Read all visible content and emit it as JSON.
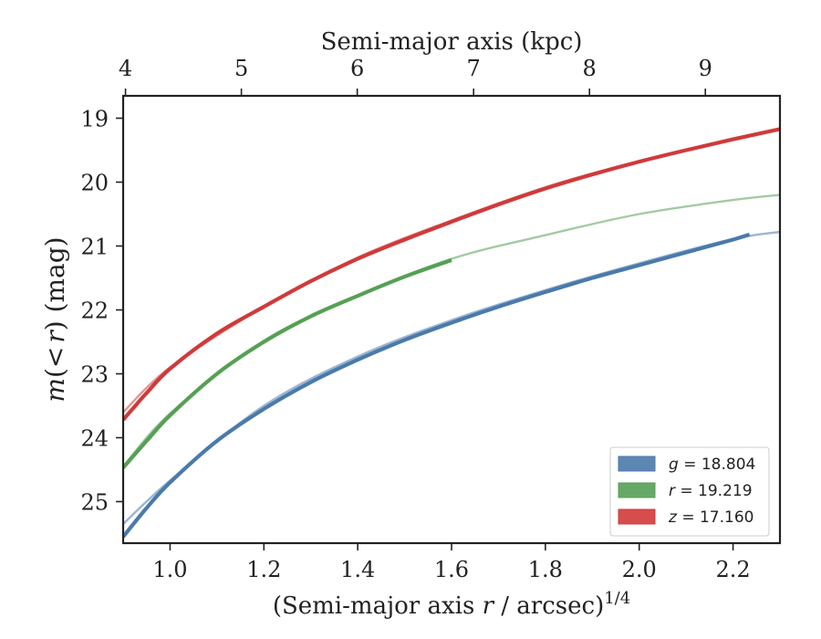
{
  "chart_data": {
    "type": "line",
    "xlabel": "(Semi-major axis r / arcsec)^{1/4}",
    "xlabel_parts": {
      "prefix": "(Semi-major axis ",
      "var": "r",
      "mid": " / arcsec)",
      "sup": "1/4"
    },
    "ylabel": "m(<r) (mag)",
    "ylabel_parts": {
      "m": "m",
      "open": "(",
      "lt": "<",
      "r": "r",
      "close": ")",
      "unit": " (mag)"
    },
    "top_xlabel": "Semi-major axis (kpc)",
    "xlim": [
      0.9,
      2.3
    ],
    "ylim": [
      25.65,
      18.65
    ],
    "y_inverted": true,
    "xticks": [
      "1.0",
      "1.2",
      "1.4",
      "1.6",
      "1.8",
      "2.0",
      "2.2"
    ],
    "xtick_values": [
      1.0,
      1.2,
      1.4,
      1.6,
      1.8,
      2.0,
      2.2
    ],
    "yticks": [
      "19",
      "20",
      "21",
      "22",
      "23",
      "24",
      "25"
    ],
    "ytick_values": [
      19,
      20,
      21,
      22,
      23,
      24,
      25
    ],
    "top_xticks": [
      "4",
      "5",
      "6",
      "7",
      "8",
      "9"
    ],
    "top_xtick_positions": [
      0.905,
      1.152,
      1.399,
      1.647,
      1.894,
      2.141
    ],
    "legend_position": "lower-right",
    "grid": false,
    "series": [
      {
        "name": "g = 18.804",
        "legend_var": "g",
        "legend_val": "18.804",
        "color": "#4a7aab",
        "data_x": [
          0.9,
          0.95,
          1.0,
          1.1,
          1.2,
          1.3,
          1.4,
          1.5,
          1.6,
          1.7,
          1.8,
          1.9,
          2.0,
          2.1,
          2.2,
          2.235
        ],
        "data_y": [
          25.55,
          25.1,
          24.7,
          24.05,
          23.55,
          23.13,
          22.78,
          22.47,
          22.2,
          21.95,
          21.72,
          21.5,
          21.3,
          21.1,
          20.9,
          20.82
        ],
        "model_x": [
          0.9,
          1.0,
          1.2,
          1.4,
          1.6,
          1.8,
          2.0,
          2.2,
          2.3
        ],
        "model_y": [
          25.35,
          24.67,
          23.5,
          22.73,
          22.16,
          21.69,
          21.27,
          20.89,
          20.78
        ]
      },
      {
        "name": "r = 19.219",
        "legend_var": "r",
        "legend_val": "19.219",
        "color": "#55a055",
        "data_x": [
          0.9,
          0.95,
          1.0,
          1.1,
          1.2,
          1.3,
          1.4,
          1.5,
          1.6
        ],
        "data_y": [
          24.47,
          24.05,
          23.65,
          23.0,
          22.5,
          22.1,
          21.78,
          21.48,
          21.22
        ],
        "model_x": [
          0.9,
          1.0,
          1.2,
          1.4,
          1.6,
          1.8,
          2.0,
          2.2,
          2.3
        ],
        "model_y": [
          24.45,
          23.62,
          22.48,
          21.78,
          21.2,
          20.83,
          20.5,
          20.28,
          20.2
        ]
      },
      {
        "name": "z = 17.160",
        "legend_var": "z",
        "legend_val": "17.160",
        "color": "#d03a3a",
        "data_x": [
          0.9,
          0.92,
          0.95,
          1.0,
          1.1,
          1.2,
          1.3,
          1.4,
          1.5,
          1.6,
          1.7,
          1.8,
          1.9,
          2.0,
          2.1,
          2.2,
          2.3
        ],
        "data_y": [
          23.72,
          23.55,
          23.3,
          22.92,
          22.37,
          21.95,
          21.55,
          21.2,
          20.9,
          20.62,
          20.35,
          20.1,
          19.88,
          19.68,
          19.5,
          19.33,
          19.17
        ],
        "model_x": [
          0.9,
          1.0,
          1.2,
          1.4,
          1.6,
          1.8,
          2.0,
          2.2,
          2.3
        ],
        "model_y": [
          23.6,
          22.9,
          21.95,
          21.18,
          20.6,
          20.08,
          19.67,
          19.34,
          19.18
        ]
      }
    ]
  }
}
